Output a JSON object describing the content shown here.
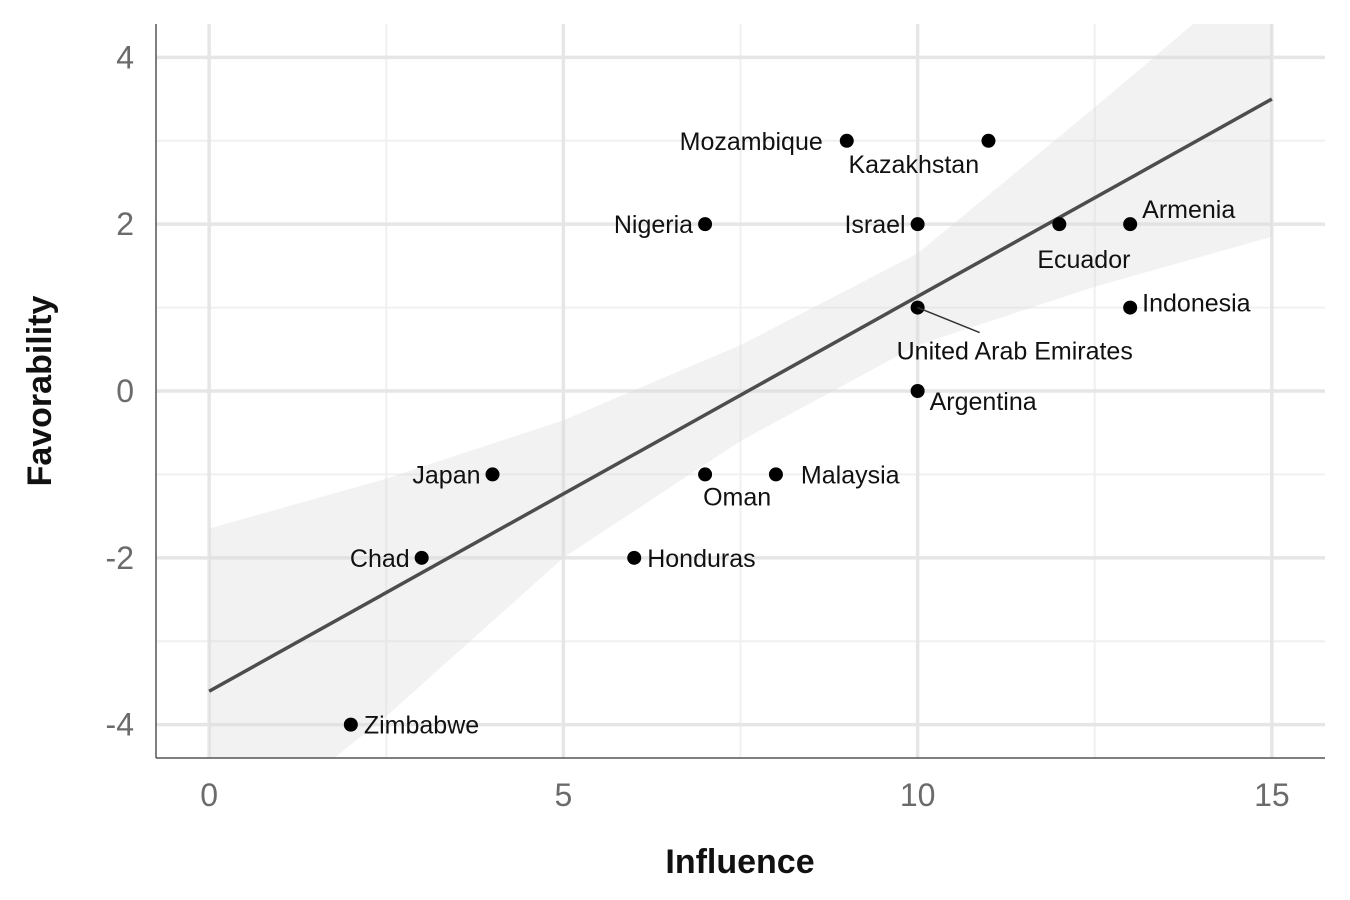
{
  "chart_data": {
    "type": "scatter",
    "title": "",
    "xlabel": "Influence",
    "ylabel": "Favorability",
    "xlim": [
      -0.75,
      15.75
    ],
    "ylim": [
      -4.4,
      4.4
    ],
    "x_ticks": [
      0,
      5,
      10,
      15
    ],
    "y_ticks": [
      -4,
      -2,
      0,
      2,
      4
    ],
    "x_tick_labels": [
      "0",
      "5",
      "10",
      "15"
    ],
    "y_tick_labels": [
      "-4",
      "-2",
      "0",
      "2",
      "4"
    ],
    "grid": true,
    "legend": "none",
    "colors": {
      "points": "#000000",
      "trend_line": "#4d4d4d",
      "confidence_band": "#d9d9d9",
      "grid_major": "#e6e6e6",
      "grid_minor": "#f0f0f0",
      "axis_line": "#555555"
    },
    "points": [
      {
        "label": "Mozambique",
        "x": 9,
        "y": 3
      },
      {
        "label": "Kazakhstan",
        "x": 11,
        "y": 3
      },
      {
        "label": "Nigeria",
        "x": 7,
        "y": 2
      },
      {
        "label": "Israel",
        "x": 10,
        "y": 2
      },
      {
        "label": "Ecuador",
        "x": 12,
        "y": 2
      },
      {
        "label": "Armenia",
        "x": 13,
        "y": 2
      },
      {
        "label": "United Arab Emirates",
        "x": 10,
        "y": 1
      },
      {
        "label": "Indonesia",
        "x": 13,
        "y": 1
      },
      {
        "label": "Argentina",
        "x": 10,
        "y": 0
      },
      {
        "label": "Japan",
        "x": 4,
        "y": -1
      },
      {
        "label": "Oman",
        "x": 7,
        "y": -1
      },
      {
        "label": "Malaysia",
        "x": 8,
        "y": -1
      },
      {
        "label": "Chad",
        "x": 3,
        "y": -2
      },
      {
        "label": "Honduras",
        "x": 6,
        "y": -2
      },
      {
        "label": "Zimbabwe",
        "x": 2,
        "y": -4
      }
    ],
    "trend_line": {
      "x": [
        0,
        15
      ],
      "y": [
        -3.6,
        3.5
      ]
    },
    "confidence_band": {
      "x": [
        0,
        2.5,
        5,
        7.5,
        10,
        12.5,
        15
      ],
      "lower": [
        -5.6,
        -3.9,
        -2.0,
        -0.6,
        0.55,
        1.25,
        1.85
      ],
      "upper": [
        -1.65,
        -1.05,
        -0.35,
        0.55,
        1.65,
        3.4,
        5.2
      ]
    }
  }
}
